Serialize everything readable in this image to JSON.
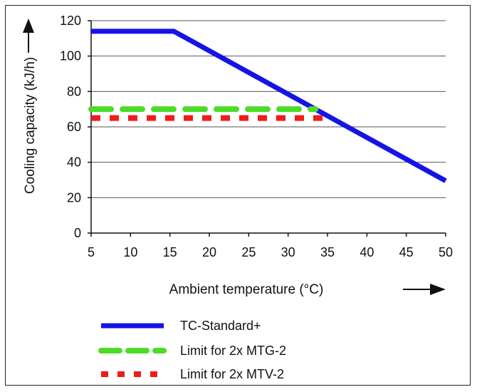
{
  "chart_data": {
    "type": "line",
    "xlabel": "Ambient temperature (°C)",
    "ylabel": "Cooling capacity (kJ/h)",
    "x_ticks": [
      5,
      10,
      15,
      20,
      25,
      30,
      35,
      40,
      45,
      50
    ],
    "y_ticks": [
      0,
      20,
      40,
      60,
      80,
      100,
      120
    ],
    "xlim": [
      5,
      50
    ],
    "ylim": [
      0,
      120
    ],
    "grid": "horizontal",
    "legend_position": "bottom",
    "series": [
      {
        "name": "TC-Standard+",
        "color": "#1414e6",
        "style": "solid",
        "x": [
          5,
          15.5,
          50
        ],
        "y": [
          114,
          114,
          29.5
        ]
      },
      {
        "name": "Limit for 2x MTG-2",
        "color": "#4cdc28",
        "style": "dashed",
        "x": [
          5,
          33.5
        ],
        "y": [
          70,
          70
        ]
      },
      {
        "name": "Limit for 2x MTV-2",
        "color": "#ee1c1c",
        "style": "dotted",
        "x": [
          5,
          35
        ],
        "y": [
          65,
          65
        ]
      }
    ]
  }
}
